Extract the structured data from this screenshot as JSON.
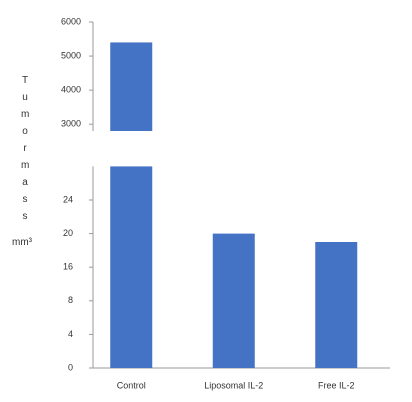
{
  "chart_data": {
    "type": "bar",
    "y_label": "Tumor mass",
    "y_unit": "mm³",
    "categories": [
      "Control",
      "Liposomal IL-2",
      "Free IL-2"
    ],
    "values": [
      5400,
      20,
      19
    ],
    "color": "#4472c4",
    "ylim_upper": [
      2800,
      6000
    ],
    "yticks_upper": [
      3000,
      4000,
      5000,
      6000
    ],
    "ylim": [
      0,
      28
    ],
    "yticks": [
      0,
      4,
      8,
      16,
      20,
      24
    ]
  }
}
